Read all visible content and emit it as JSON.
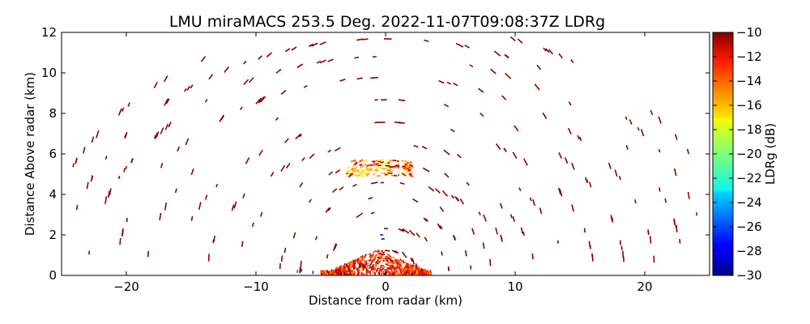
{
  "chart_data": {
    "type": "scatter",
    "title": "LMU miraMACS 253.5 Deg. 2022-11-07T09:08:37Z  LDRg",
    "xlabel": "Distance from radar (km)",
    "ylabel": "Distance Above radar  (km)",
    "xlim": [
      -25,
      25
    ],
    "ylim": [
      0,
      12
    ],
    "xticks": [
      "−20",
      "−10",
      "0",
      "10",
      "20"
    ],
    "xtick_values": [
      -20,
      -10,
      0,
      10,
      20
    ],
    "yticks": [
      "0",
      "2",
      "4",
      "6",
      "8",
      "10",
      "12"
    ],
    "ytick_values": [
      0,
      2,
      4,
      6,
      8,
      10,
      12
    ],
    "grid": false,
    "colorbar": {
      "label": "LDRg (dB)",
      "range": [
        -30,
        -10
      ],
      "ticks": [
        "−10",
        "−12",
        "−14",
        "−16",
        "−18",
        "−20",
        "−22",
        "−24",
        "−26",
        "−28",
        "−30"
      ],
      "tick_values": [
        -10,
        -12,
        -14,
        -16,
        -18,
        -20,
        -22,
        -24,
        -26,
        -28,
        -30
      ],
      "colormap": "jet"
    },
    "features": [
      {
        "name": "scattered noise speckles",
        "ldr_db": -10
      },
      {
        "name": "precipitation near ground",
        "x_range_km": [
          -5,
          3.5
        ],
        "y_range_km": [
          0,
          1.4
        ],
        "ldr_db_range": [
          -16,
          -10
        ]
      },
      {
        "name": "cloud layer",
        "x_range_km": [
          -3,
          2
        ],
        "y_range_km": [
          4.9,
          5.7
        ],
        "ldr_db_range": [
          -18,
          -10
        ]
      }
    ]
  },
  "colors": {
    "speckle": "#8b0000",
    "axes": "#000000"
  }
}
